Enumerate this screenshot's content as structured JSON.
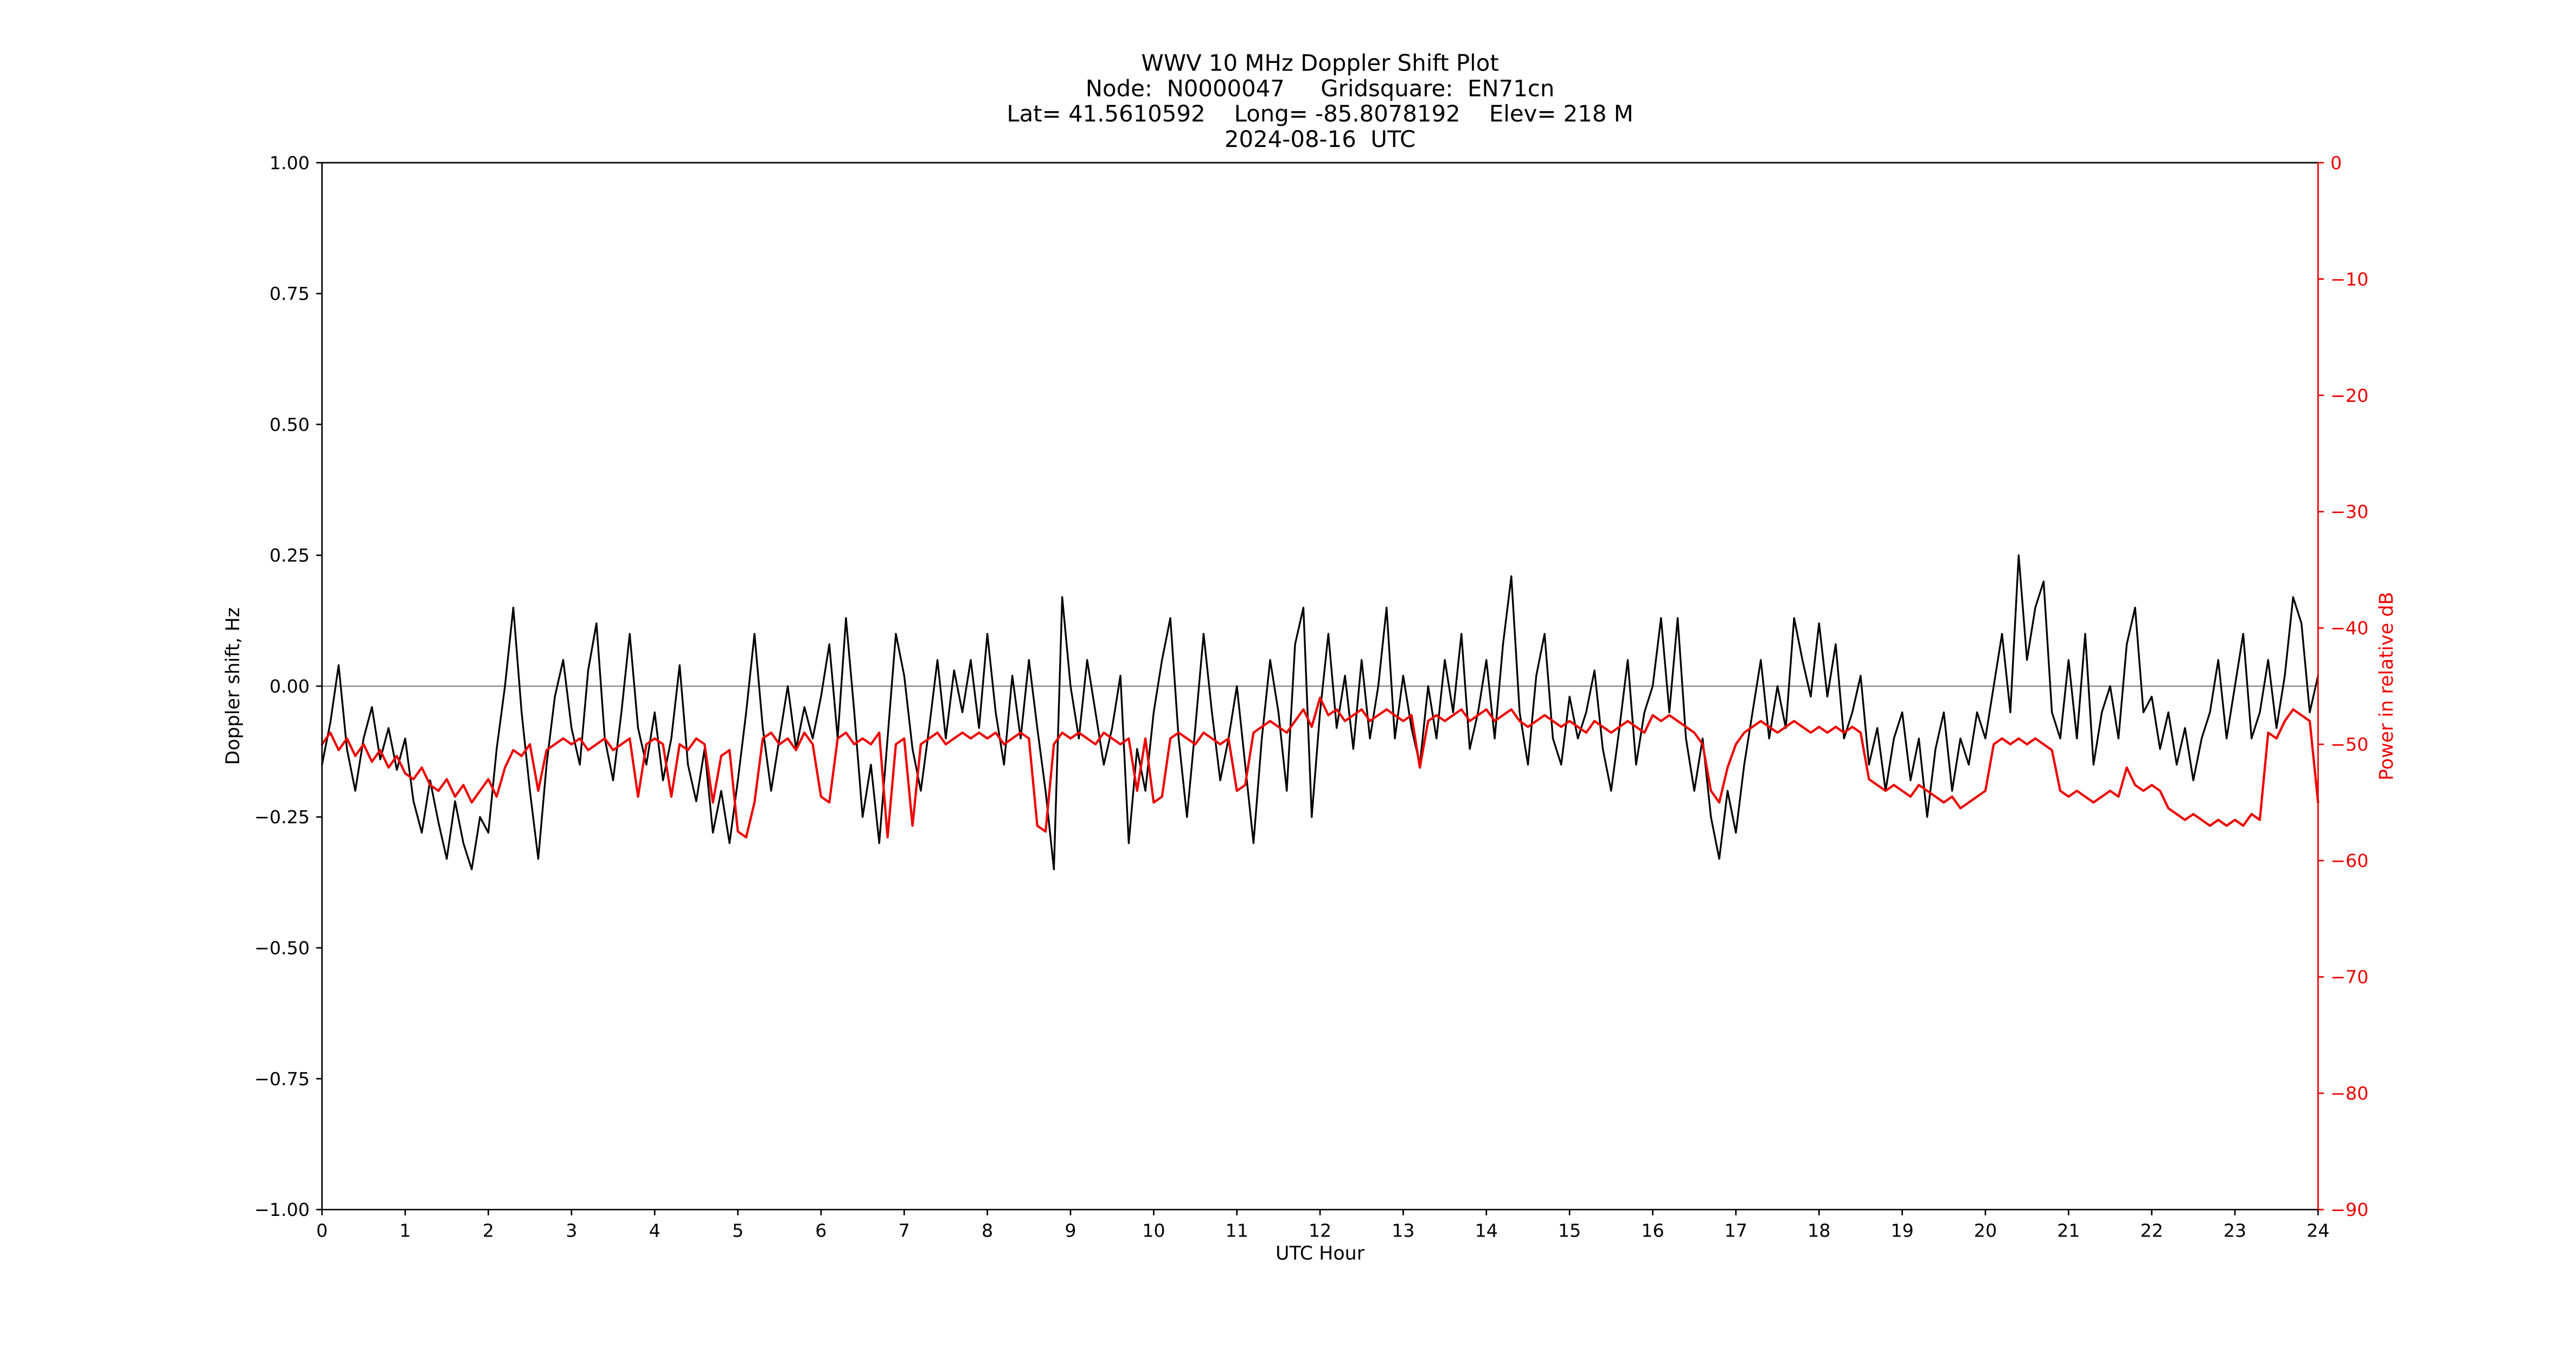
{
  "page": {
    "background": "#ffffff"
  },
  "header": {
    "line1": "WWV 10 MHz Doppler Shift Plot",
    "line2": "Node:  N0000047     Gridsquare:  EN71cn",
    "line3": "Lat= 41.5610592    Long= -85.8078192    Elev= 218 M",
    "line4": "2024-08-16  UTC"
  },
  "chart_data": {
    "type": "line",
    "title": "WWV 10 MHz Doppler Shift Plot",
    "subtitle_lines": [
      "Node:  N0000047     Gridsquare:  EN71cn",
      "Lat= 41.5610592    Long= -85.8078192    Elev= 218 M",
      "2024-08-16  UTC"
    ],
    "grid": false,
    "legend": null,
    "x": {
      "label": "UTC Hour",
      "min": 0,
      "max": 24,
      "tick_values": [
        0,
        1,
        2,
        3,
        4,
        5,
        6,
        7,
        8,
        9,
        10,
        11,
        12,
        13,
        14,
        15,
        16,
        17,
        18,
        19,
        20,
        21,
        22,
        23,
        24
      ],
      "tick_labels": [
        "0",
        "1",
        "2",
        "3",
        "4",
        "5",
        "6",
        "7",
        "8",
        "9",
        "10",
        "11",
        "12",
        "13",
        "14",
        "15",
        "16",
        "17",
        "18",
        "19",
        "20",
        "21",
        "22",
        "23",
        "24"
      ]
    },
    "y_left": {
      "label": "Doppler shift, Hz",
      "min": -1.0,
      "max": 1.0,
      "tick_values": [
        1.0,
        0.75,
        0.5,
        0.25,
        0.0,
        -0.25,
        -0.5,
        -0.75,
        -1.0
      ],
      "tick_labels": [
        "1.00",
        "0.75",
        "0.50",
        "0.25",
        "0.00",
        "−0.25",
        "−0.50",
        "−0.75",
        "−1.00"
      ],
      "color": "#000000"
    },
    "y_right": {
      "label": "Power in relative dB",
      "min": -90,
      "max": 0,
      "tick_values": [
        0,
        -10,
        -20,
        -30,
        -40,
        -50,
        -60,
        -70,
        -80,
        -90
      ],
      "tick_labels": [
        "0",
        "−10",
        "−20",
        "−30",
        "−40",
        "−50",
        "−60",
        "−70",
        "−80",
        "−90"
      ],
      "color": "#ee0000"
    },
    "zero_line": {
      "y": 0.0,
      "color": "#888888"
    },
    "x_start": 0,
    "x_step": 0.1,
    "series": [
      {
        "name": "doppler-shift-hz",
        "axis": "left",
        "color": "#000000",
        "width": 1.1,
        "values": [
          -0.15,
          -0.07,
          0.04,
          -0.12,
          -0.2,
          -0.1,
          -0.04,
          -0.14,
          -0.08,
          -0.16,
          -0.1,
          -0.22,
          -0.28,
          -0.18,
          -0.26,
          -0.33,
          -0.22,
          -0.3,
          -0.35,
          -0.25,
          -0.28,
          -0.12,
          0.0,
          0.15,
          -0.05,
          -0.2,
          -0.33,
          -0.15,
          -0.02,
          0.05,
          -0.08,
          -0.15,
          0.03,
          0.12,
          -0.1,
          -0.18,
          -0.05,
          0.1,
          -0.08,
          -0.15,
          -0.05,
          -0.18,
          -0.1,
          0.04,
          -0.15,
          -0.22,
          -0.12,
          -0.28,
          -0.2,
          -0.3,
          -0.18,
          -0.05,
          0.1,
          -0.08,
          -0.2,
          -0.1,
          0.0,
          -0.12,
          -0.04,
          -0.1,
          -0.02,
          0.08,
          -0.1,
          0.13,
          -0.05,
          -0.25,
          -0.15,
          -0.3,
          -0.1,
          0.1,
          0.02,
          -0.12,
          -0.2,
          -0.08,
          0.05,
          -0.1,
          0.03,
          -0.05,
          0.05,
          -0.08,
          0.1,
          -0.05,
          -0.15,
          0.02,
          -0.1,
          0.05,
          -0.08,
          -0.2,
          -0.35,
          0.17,
          0.0,
          -0.1,
          0.05,
          -0.05,
          -0.15,
          -0.08,
          0.02,
          -0.3,
          -0.12,
          -0.2,
          -0.05,
          0.05,
          0.13,
          -0.1,
          -0.25,
          -0.08,
          0.1,
          -0.05,
          -0.18,
          -0.1,
          0.0,
          -0.15,
          -0.3,
          -0.1,
          0.05,
          -0.05,
          -0.2,
          0.08,
          0.15,
          -0.25,
          -0.05,
          0.1,
          -0.08,
          0.02,
          -0.12,
          0.05,
          -0.1,
          0.0,
          0.15,
          -0.1,
          0.02,
          -0.08,
          -0.15,
          0.0,
          -0.1,
          0.05,
          -0.05,
          0.1,
          -0.12,
          -0.05,
          0.05,
          -0.1,
          0.08,
          0.21,
          -0.05,
          -0.15,
          0.02,
          0.1,
          -0.1,
          -0.15,
          -0.02,
          -0.1,
          -0.05,
          0.03,
          -0.12,
          -0.2,
          -0.08,
          0.05,
          -0.15,
          -0.05,
          0.0,
          0.13,
          -0.05,
          0.13,
          -0.1,
          -0.2,
          -0.1,
          -0.25,
          -0.33,
          -0.2,
          -0.28,
          -0.15,
          -0.05,
          0.05,
          -0.1,
          0.0,
          -0.08,
          0.13,
          0.05,
          -0.02,
          0.12,
          -0.02,
          0.08,
          -0.1,
          -0.05,
          0.02,
          -0.15,
          -0.08,
          -0.2,
          -0.1,
          -0.05,
          -0.18,
          -0.1,
          -0.25,
          -0.12,
          -0.05,
          -0.2,
          -0.1,
          -0.15,
          -0.05,
          -0.1,
          0.0,
          0.1,
          -0.05,
          0.25,
          0.05,
          0.15,
          0.2,
          -0.05,
          -0.1,
          0.05,
          -0.1,
          0.1,
          -0.15,
          -0.05,
          0.0,
          -0.1,
          0.08,
          0.15,
          -0.05,
          -0.02,
          -0.12,
          -0.05,
          -0.15,
          -0.08,
          -0.18,
          -0.1,
          -0.05,
          0.05,
          -0.1,
          0.0,
          0.1,
          -0.1,
          -0.05,
          0.05,
          -0.08,
          0.02,
          0.17,
          0.12,
          -0.05,
          0.02
        ]
      },
      {
        "name": "power-relative-db",
        "axis": "right",
        "color": "#ee0000",
        "width": 1.4,
        "values": [
          -50,
          -49,
          -50.5,
          -49.5,
          -51,
          -50,
          -51.5,
          -50.5,
          -52,
          -51,
          -52.5,
          -53,
          -52,
          -53.5,
          -54,
          -53,
          -54.5,
          -53.5,
          -55,
          -54,
          -53,
          -54.5,
          -52,
          -50.5,
          -51,
          -50,
          -54,
          -50.5,
          -50,
          -49.5,
          -50,
          -49.5,
          -50.5,
          -50,
          -49.5,
          -50.5,
          -50,
          -49.5,
          -54.5,
          -50,
          -49.5,
          -50,
          -54.5,
          -50,
          -50.5,
          -49.5,
          -50,
          -55,
          -51,
          -50.5,
          -57.5,
          -58,
          -55,
          -49.5,
          -49,
          -50,
          -49.5,
          -50.5,
          -49,
          -50,
          -54.5,
          -55,
          -49.5,
          -49,
          -50,
          -49.5,
          -50,
          -49,
          -58,
          -50,
          -49.5,
          -57,
          -50,
          -49.5,
          -49,
          -50,
          -49.5,
          -49,
          -49.5,
          -49,
          -49.5,
          -49,
          -50,
          -49.5,
          -49,
          -49.5,
          -57,
          -57.5,
          -50,
          -49,
          -49.5,
          -49,
          -49.5,
          -50,
          -49,
          -49.5,
          -50,
          -49.5,
          -54,
          -49.5,
          -55,
          -54.5,
          -49.5,
          -49,
          -49.5,
          -50,
          -49,
          -49.5,
          -50,
          -49.5,
          -54,
          -53.5,
          -49,
          -48.5,
          -48,
          -48.5,
          -49,
          -48,
          -47,
          -48.5,
          -46,
          -47.5,
          -47,
          -48,
          -47.5,
          -47,
          -48,
          -47.5,
          -47,
          -47.5,
          -48,
          -47.5,
          -52,
          -48,
          -47.5,
          -48,
          -47.5,
          -47,
          -48,
          -47.5,
          -47,
          -48,
          -47.5,
          -47,
          -48,
          -48.5,
          -48,
          -47.5,
          -48,
          -48.5,
          -48,
          -48.5,
          -49,
          -48,
          -48.5,
          -49,
          -48.5,
          -48,
          -48.5,
          -49,
          -47.5,
          -48,
          -47.5,
          -48,
          -48.5,
          -49,
          -50,
          -54,
          -55,
          -52,
          -50,
          -49,
          -48.5,
          -48,
          -48.5,
          -49,
          -48.5,
          -48,
          -48.5,
          -49,
          -48.5,
          -49,
          -48.5,
          -49,
          -48.5,
          -49,
          -53,
          -53.5,
          -54,
          -53.5,
          -54,
          -54.5,
          -53.5,
          -54,
          -54.5,
          -55,
          -54.5,
          -55.5,
          -55,
          -54.5,
          -54,
          -50,
          -49.5,
          -50,
          -49.5,
          -50,
          -49.5,
          -50,
          -50.5,
          -54,
          -54.5,
          -54,
          -54.5,
          -55,
          -54.5,
          -54,
          -54.5,
          -52,
          -53.5,
          -54,
          -53.5,
          -54,
          -55.5,
          -56,
          -56.5,
          -56,
          -56.5,
          -57,
          -56.5,
          -57,
          -56.5,
          -57,
          -56,
          -56.5,
          -49,
          -49.5,
          -48,
          -47,
          -47.5,
          -48,
          -55
        ]
      }
    ]
  }
}
